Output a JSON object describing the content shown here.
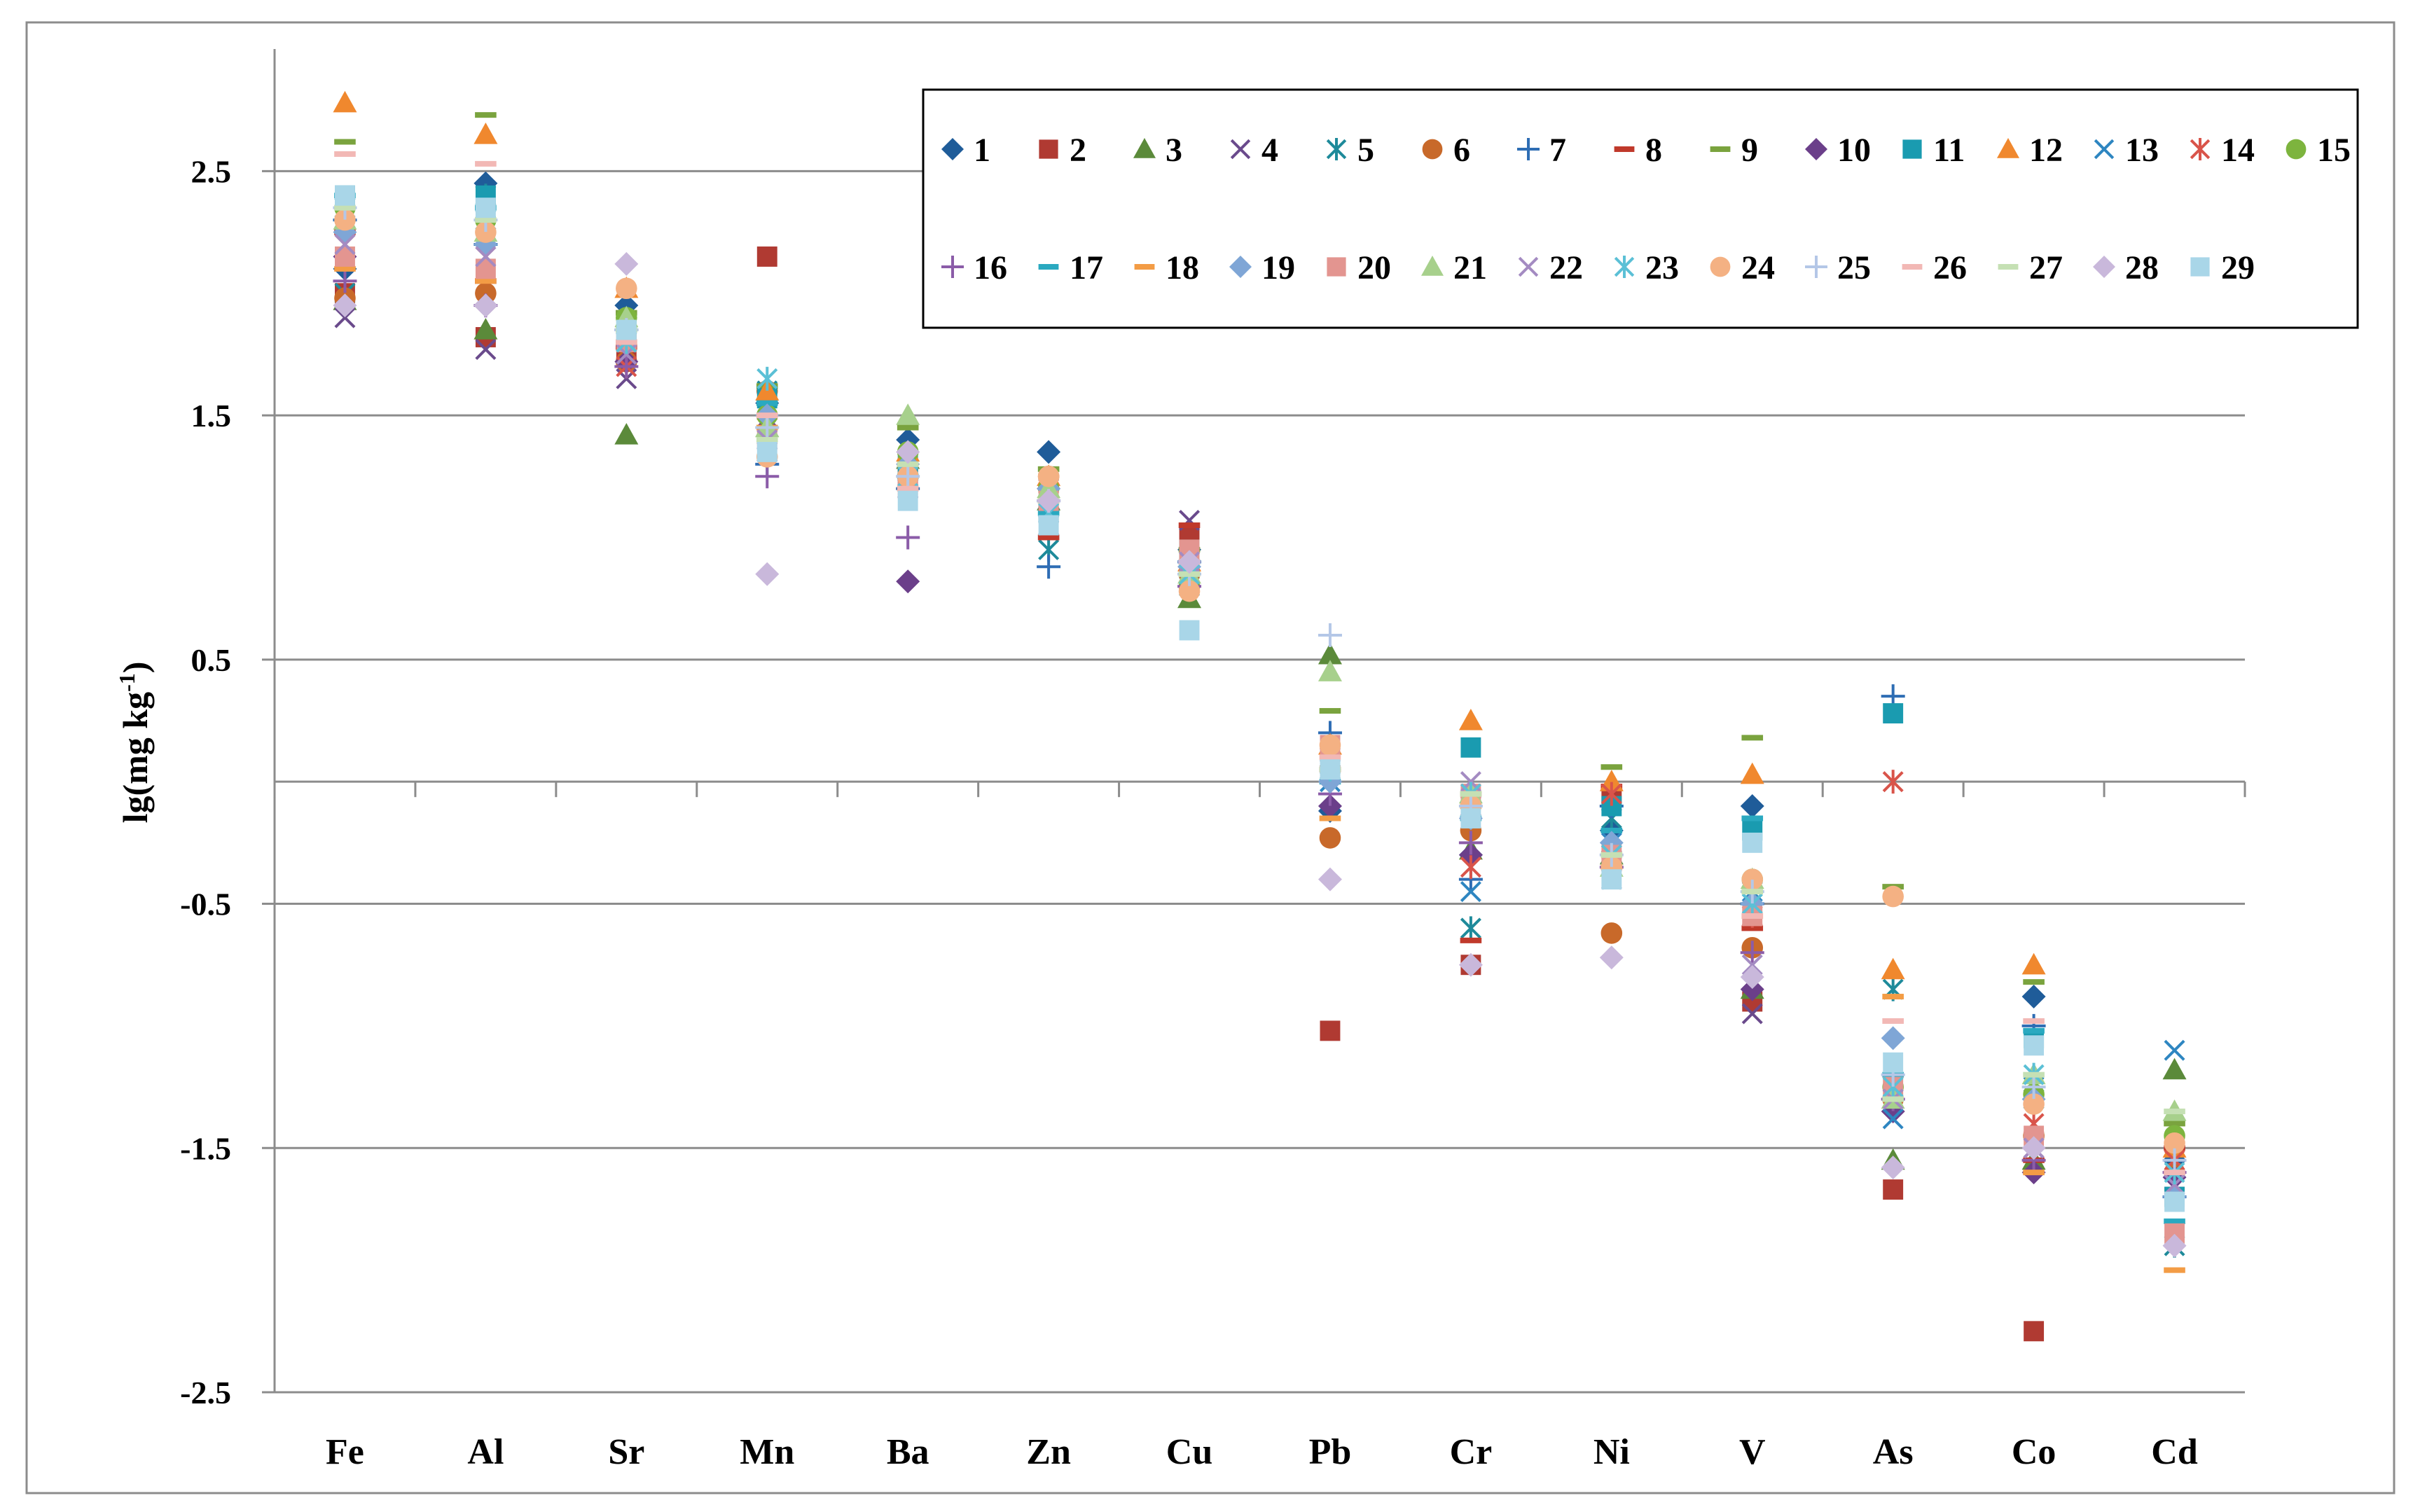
{
  "chart_data": {
    "type": "scatter",
    "title": "",
    "xlabel": "",
    "ylabel": "lg(mg kg",
    "ylabel_sup": "-1",
    "ylabel_close": ")",
    "ylim": [
      -2.5,
      3.0
    ],
    "yticks": [
      2.5,
      1.5,
      0.5,
      -0.5,
      -1.5,
      -2.5
    ],
    "ytick_labels": [
      "2.5",
      "1.5",
      "0.5",
      "-0.5",
      "-1.5",
      "-2.5"
    ],
    "grid": true,
    "legend_position": "top-right",
    "categories": [
      "Fe",
      "Al",
      "Sr",
      "Mn",
      "Ba",
      "Zn",
      "Cu",
      "Pb",
      "Cr",
      "Ni",
      "V",
      "As",
      "Co",
      "Cd"
    ],
    "series": [
      {
        "name": "1",
        "marker": "diamond",
        "color": "#1F5C99",
        "values": [
          2.1,
          2.45,
          1.95,
          1.55,
          1.4,
          1.35,
          0.95,
          -0.12,
          -0.3,
          -0.2,
          -0.1,
          -1.2,
          -0.88,
          -1.55
        ]
      },
      {
        "name": "2",
        "marker": "square",
        "color": "#B03A32",
        "values": [
          2.0,
          1.82,
          1.75,
          2.15,
          1.25,
          1.1,
          1.0,
          -1.02,
          -0.75,
          -0.05,
          -0.9,
          -1.67,
          -2.25,
          -1.7
        ]
      },
      {
        "name": "3",
        "marker": "triangle",
        "color": "#5B8A3A",
        "values": [
          1.97,
          1.85,
          1.42,
          1.45,
          1.32,
          1.15,
          0.75,
          0.52,
          -0.28,
          -0.3,
          -0.85,
          -1.55,
          -1.55,
          -1.18
        ]
      },
      {
        "name": "4",
        "marker": "x",
        "color": "#6A4A8C",
        "values": [
          1.9,
          1.77,
          1.65,
          1.35,
          1.2,
          1.2,
          1.07,
          0.05,
          -0.1,
          -0.3,
          -0.95,
          -1.3,
          -1.5,
          -1.65
        ]
      },
      {
        "name": "5",
        "marker": "asterisk",
        "color": "#1E8A9A",
        "values": [
          2.0,
          2.4,
          1.8,
          1.6,
          1.25,
          0.95,
          0.8,
          0.1,
          -0.6,
          -0.15,
          -0.5,
          -0.85,
          -1.3,
          -1.9
        ]
      },
      {
        "name": "6",
        "marker": "circle",
        "color": "#C8692A",
        "values": [
          1.98,
          2.0,
          1.72,
          1.6,
          1.3,
          1.25,
          0.85,
          -0.23,
          -0.2,
          -0.62,
          -0.68,
          -1.3,
          -1.45,
          -1.6
        ]
      },
      {
        "name": "7",
        "marker": "plus",
        "color": "#2E6DB4",
        "values": [
          2.3,
          2.2,
          1.85,
          1.3,
          1.2,
          0.88,
          0.9,
          0.2,
          -0.4,
          -0.1,
          -0.5,
          0.35,
          -1.0,
          -1.7
        ]
      },
      {
        "name": "8",
        "marker": "dash",
        "color": "#C0392B",
        "values": [
          2.25,
          2.05,
          1.78,
          1.5,
          1.3,
          1.0,
          1.05,
          0.05,
          -0.65,
          -0.02,
          -0.6,
          -1.3,
          -1.55,
          -1.5
        ]
      },
      {
        "name": "9",
        "marker": "dash",
        "color": "#7AA33E",
        "values": [
          2.62,
          2.73,
          1.92,
          1.62,
          1.45,
          1.28,
          0.95,
          0.29,
          -0.05,
          0.06,
          0.18,
          -0.43,
          -0.82,
          -1.4
        ]
      },
      {
        "name": "10",
        "marker": "diamond",
        "color": "#6B3F8A",
        "values": [
          2.15,
          1.95,
          1.72,
          1.45,
          0.82,
          1.2,
          0.85,
          -0.1,
          -0.3,
          -0.3,
          -0.85,
          -1.35,
          -1.6,
          -1.62
        ]
      },
      {
        "name": "11",
        "marker": "square",
        "color": "#1A9BB0",
        "values": [
          2.4,
          2.4,
          1.85,
          1.57,
          1.3,
          1.1,
          0.95,
          0.05,
          0.14,
          -0.1,
          -0.2,
          0.28,
          -1.05,
          -1.7
        ]
      },
      {
        "name": "12",
        "marker": "triangle",
        "color": "#F0882E",
        "values": [
          2.78,
          2.65,
          2.02,
          1.6,
          1.35,
          1.25,
          0.9,
          0.15,
          0.25,
          0.0,
          0.03,
          -0.77,
          -0.75,
          -1.5
        ]
      },
      {
        "name": "13",
        "marker": "x",
        "color": "#2E86C1",
        "values": [
          2.35,
          2.3,
          1.8,
          1.4,
          1.2,
          1.05,
          0.85,
          0.0,
          -0.45,
          -0.25,
          -0.45,
          -1.38,
          -1.25,
          -1.1
        ]
      },
      {
        "name": "14",
        "marker": "asterisk",
        "color": "#D9544A",
        "values": [
          2.2,
          2.15,
          1.7,
          1.45,
          1.25,
          1.15,
          0.9,
          0.1,
          -0.35,
          -0.05,
          -0.55,
          0.0,
          -1.4,
          -1.55
        ]
      },
      {
        "name": "15",
        "marker": "circle",
        "color": "#7DB43E",
        "values": [
          2.35,
          2.3,
          1.9,
          1.5,
          1.35,
          1.2,
          0.8,
          0.05,
          -0.1,
          -0.3,
          -0.4,
          -1.25,
          -1.28,
          -1.45
        ]
      },
      {
        "name": "16",
        "marker": "plus",
        "color": "#8B5CA8",
        "values": [
          2.05,
          1.95,
          1.7,
          1.25,
          1.0,
          1.15,
          0.8,
          -0.05,
          -0.25,
          -0.35,
          -0.7,
          -1.3,
          -1.55,
          -1.6
        ]
      },
      {
        "name": "17",
        "marker": "dash",
        "color": "#2AA9C0",
        "values": [
          2.4,
          2.35,
          1.85,
          1.55,
          1.25,
          1.1,
          0.9,
          0.0,
          -0.15,
          -0.2,
          -0.15,
          -1.2,
          -1.02,
          -1.8
        ]
      },
      {
        "name": "18",
        "marker": "dash",
        "color": "#F39C45",
        "values": [
          2.1,
          2.05,
          1.8,
          1.45,
          1.2,
          1.15,
          0.85,
          -0.15,
          -0.1,
          -0.35,
          -0.55,
          -0.88,
          -1.6,
          -2.0
        ]
      },
      {
        "name": "19",
        "marker": "diamond",
        "color": "#7FA6D6",
        "values": [
          2.25,
          2.2,
          1.85,
          1.5,
          1.3,
          1.2,
          0.88,
          0.0,
          -0.15,
          -0.25,
          -0.5,
          -1.05,
          -1.3,
          -1.7
        ]
      },
      {
        "name": "20",
        "marker": "square",
        "color": "#E39590",
        "values": [
          2.15,
          2.1,
          1.8,
          1.4,
          1.2,
          1.15,
          0.95,
          0.15,
          -0.05,
          -0.3,
          -0.55,
          -1.25,
          -1.45,
          -1.85
        ]
      },
      {
        "name": "21",
        "marker": "triangle",
        "color": "#A7D08C",
        "values": [
          2.3,
          2.25,
          1.9,
          1.45,
          1.5,
          1.2,
          0.85,
          0.45,
          -0.05,
          -0.35,
          -0.4,
          -1.3,
          -1.2,
          -1.35
        ]
      },
      {
        "name": "22",
        "marker": "x",
        "color": "#A48BC2",
        "values": [
          2.2,
          2.15,
          1.75,
          1.4,
          1.2,
          1.1,
          0.9,
          0.05,
          0.0,
          -0.4,
          -0.75,
          -1.3,
          -1.5,
          -1.65
        ]
      },
      {
        "name": "23",
        "marker": "asterisk",
        "color": "#5BC0D6",
        "values": [
          2.35,
          2.3,
          1.8,
          1.65,
          1.25,
          1.1,
          0.85,
          0.05,
          -0.05,
          -0.3,
          -0.5,
          -1.25,
          -1.2,
          -1.6
        ]
      },
      {
        "name": "24",
        "marker": "circle",
        "color": "#F4B183",
        "values": [
          2.3,
          2.25,
          2.02,
          1.33,
          1.25,
          1.25,
          0.78,
          0.15,
          -0.1,
          -0.35,
          -0.4,
          -0.47,
          -1.32,
          -1.48
        ]
      },
      {
        "name": "25",
        "marker": "plus",
        "color": "#B4C7E7",
        "values": [
          2.35,
          2.3,
          1.85,
          1.45,
          1.25,
          1.15,
          0.85,
          0.6,
          -0.1,
          -0.3,
          -0.45,
          -1.2,
          -1.25,
          -1.55
        ]
      },
      {
        "name": "26",
        "marker": "dash",
        "color": "#F2B8B5",
        "values": [
          2.57,
          2.53,
          1.8,
          1.5,
          1.2,
          1.15,
          0.9,
          0.1,
          -0.05,
          -0.3,
          -0.55,
          -0.98,
          -0.98,
          -1.6
        ]
      },
      {
        "name": "27",
        "marker": "dash",
        "color": "#C5E0B4",
        "values": [
          2.35,
          2.3,
          1.85,
          1.4,
          1.3,
          1.15,
          0.85,
          0.05,
          -0.05,
          -0.3,
          -0.45,
          -1.3,
          -1.2,
          -1.35
        ]
      },
      {
        "name": "28",
        "marker": "diamond",
        "color": "#C9B8DB",
        "values": [
          1.95,
          1.95,
          2.12,
          0.85,
          1.35,
          1.15,
          0.9,
          -0.4,
          -0.75,
          -0.72,
          -0.8,
          -1.58,
          -1.5,
          -1.9
        ]
      },
      {
        "name": "29",
        "marker": "square",
        "color": "#A9D6E8",
        "values": [
          2.4,
          2.35,
          1.85,
          1.35,
          1.15,
          1.05,
          0.62,
          0.05,
          -0.15,
          -0.4,
          -0.25,
          -1.15,
          -1.08,
          -1.72
        ]
      }
    ]
  }
}
